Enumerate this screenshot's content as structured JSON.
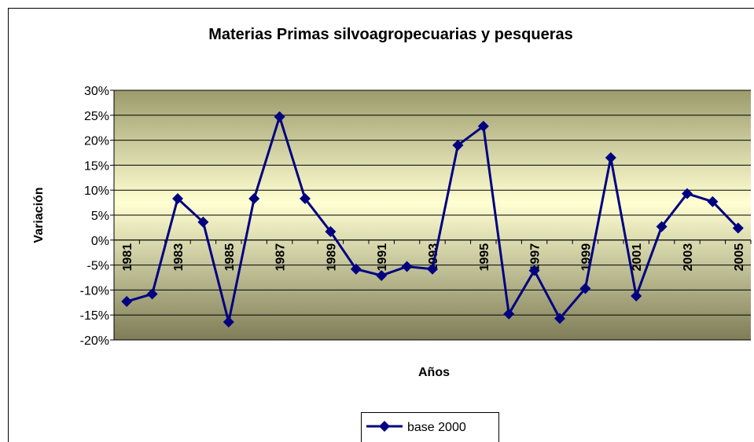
{
  "chart_data": {
    "type": "line",
    "title": "Materias Primas silvoagropecuarias y pesqueras",
    "x_label": "Años",
    "y_label": "Variación",
    "categories": [
      "1981",
      null,
      "1983",
      null,
      "1985",
      null,
      "1987",
      null,
      "1989",
      null,
      "1991",
      null,
      "1993",
      null,
      "1995",
      null,
      "1997",
      null,
      "1999",
      null,
      "2001",
      null,
      "2003",
      null,
      "2005"
    ],
    "series": [
      {
        "name": "base 2000",
        "color": "#000080",
        "values": [
          -12.3,
          -10.8,
          8.3,
          3.6,
          -16.4,
          8.3,
          24.7,
          8.3,
          1.7,
          -5.8,
          -7.1,
          -5.3,
          -5.8,
          19.0,
          22.8,
          -14.8,
          -6.1,
          -15.7,
          -9.7,
          16.5,
          -11.2,
          2.7,
          9.3,
          7.7,
          2.4
        ]
      }
    ],
    "ylim": [
      -20,
      30
    ],
    "yticks": [
      {
        "value": -20,
        "label": "-20%"
      },
      {
        "value": -15,
        "label": "-15%"
      },
      {
        "value": -10,
        "label": "-10%"
      },
      {
        "value": -5,
        "label": "-5%"
      },
      {
        "value": 0,
        "label": "0%"
      },
      {
        "value": 5,
        "label": "5%"
      },
      {
        "value": 10,
        "label": "10%"
      },
      {
        "value": 15,
        "label": "15%"
      },
      {
        "value": 20,
        "label": "20%"
      },
      {
        "value": 25,
        "label": "25%"
      },
      {
        "value": 30,
        "label": "30%"
      }
    ],
    "grid": true,
    "legend": "bottom"
  }
}
